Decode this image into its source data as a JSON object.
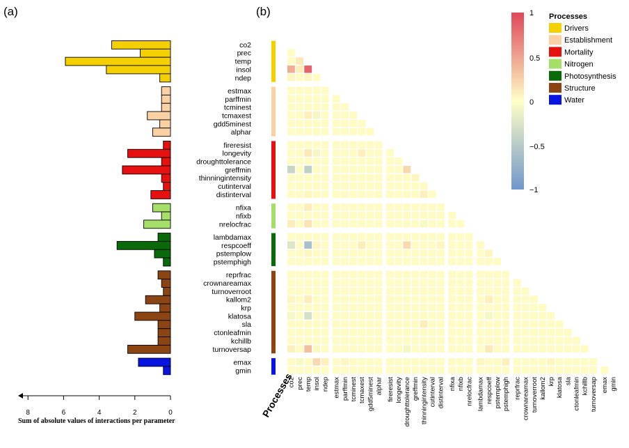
{
  "panel_a": {
    "label": "(a)",
    "axis_title": "Sum of absolute values of interactions per parameter",
    "ticks": [
      "8",
      "6",
      "4",
      "2",
      "0"
    ]
  },
  "panel_b": {
    "label": "(b)",
    "processes_label": "Processes",
    "colorbar_ticks": [
      "1",
      "0.5",
      "0",
      "−0.5",
      "−1"
    ]
  },
  "legend": {
    "title": "Processes",
    "entries": [
      {
        "name": "Drivers",
        "color": "#F5D000"
      },
      {
        "name": "Establishment",
        "color": "#FAD1A4"
      },
      {
        "name": "Mortality",
        "color": "#E61010"
      },
      {
        "name": "Nitrogen",
        "color": "#A6DE6A"
      },
      {
        "name": "Photosynthesis",
        "color": "#0A6A0A"
      },
      {
        "name": "Structure",
        "color": "#8B4513"
      },
      {
        "name": "Water",
        "color": "#0A14E0"
      }
    ]
  },
  "colors": {
    "positive_max": "#E0475A",
    "neutral": "#FFFFC6",
    "negative_max": "#7096CC"
  },
  "chart_data": [
    {
      "type": "bar",
      "orientation": "horizontal",
      "xlabel": "Sum of absolute values of interactions per parameter",
      "xlim": [
        0,
        8
      ],
      "x_reversed": true,
      "groups": [
        {
          "process": "Drivers",
          "params": [
            "co2",
            "prec",
            "temp",
            "insol",
            "ndep"
          ],
          "values": [
            3.3,
            1.7,
            5.9,
            3.6,
            0.6
          ]
        },
        {
          "process": "Establishment",
          "params": [
            "estmax",
            "parffmin",
            "tcminest",
            "tcmaxest",
            "gdd5minest",
            "alphar"
          ],
          "values": [
            0.5,
            0.5,
            0.5,
            1.3,
            0.6,
            1.0
          ]
        },
        {
          "process": "Mortality",
          "params": [
            "fireresist",
            "longevity",
            "droughttolerance",
            "greffmin",
            "thinningintensity",
            "cutinterval",
            "distinterval"
          ],
          "values": [
            0.4,
            2.4,
            0.5,
            2.7,
            0.5,
            0.4,
            1.1
          ]
        },
        {
          "process": "Nitrogen",
          "params": [
            "nfixa",
            "nfixb",
            "nrelocfrac"
          ],
          "values": [
            1.0,
            0.5,
            1.5
          ]
        },
        {
          "process": "Photosynthesis",
          "params": [
            "lambdamax",
            "respcoeff",
            "pstemplow",
            "pstemphigh"
          ],
          "values": [
            0.7,
            3.0,
            0.9,
            0.4
          ]
        },
        {
          "process": "Structure",
          "params": [
            "reprfrac",
            "crownareamax",
            "turnoverroot",
            "kallom2",
            "krp",
            "klatosa",
            "sla",
            "ctonleafmin",
            "kchillb",
            "turnoversap"
          ],
          "values": [
            0.7,
            0.5,
            0.4,
            1.4,
            0.6,
            2.0,
            0.7,
            0.7,
            0.7,
            2.4
          ]
        },
        {
          "process": "Water",
          "params": [
            "emax",
            "gmin"
          ],
          "values": [
            1.8,
            0.4
          ]
        }
      ]
    },
    {
      "type": "heatmap",
      "layout": "lower-triangle",
      "parameters": [
        "co2",
        "prec",
        "temp",
        "insol",
        "ndep",
        "estmax",
        "parffmin",
        "tcminest",
        "tcmaxest",
        "gdd5minest",
        "alphar",
        "fireresist",
        "longevity",
        "droughttolerance",
        "greffmin",
        "thinningintensity",
        "cutinterval",
        "distinterval",
        "nfixa",
        "nfixb",
        "nrelocfrac",
        "lambdamax",
        "respcoeff",
        "pstemplow",
        "pstemphigh",
        "reprfrac",
        "crownareamax",
        "turnoverroot",
        "kallom2",
        "krp",
        "klatosa",
        "sla",
        "ctonleafmin",
        "kchillb",
        "turnoversap",
        "emax",
        "gmin"
      ],
      "group_sizes": [
        5,
        6,
        7,
        3,
        4,
        10,
        2
      ],
      "value_range": [
        -1,
        1
      ],
      "default_value": 0.02,
      "cells": [
        [
          "temp",
          "prec",
          0.12
        ],
        [
          "insol",
          "co2",
          0.45
        ],
        [
          "insol",
          "prec",
          0.1
        ],
        [
          "insol",
          "temp",
          0.85
        ],
        [
          "ndep",
          "co2",
          0.05
        ],
        [
          "ndep",
          "temp",
          0.05
        ],
        [
          "tcmaxest",
          "temp",
          0.08
        ],
        [
          "tcmaxest",
          "insol",
          -0.08
        ],
        [
          "longevity",
          "temp",
          0.12
        ],
        [
          "longevity",
          "insol",
          -0.08
        ],
        [
          "longevity",
          "tcmaxest",
          0.08
        ],
        [
          "greffmin",
          "co2",
          -0.4
        ],
        [
          "greffmin",
          "temp",
          -0.45
        ],
        [
          "greffmin",
          "droughttolerance",
          0.22
        ],
        [
          "thinningintensity",
          "greffmin",
          0.05
        ],
        [
          "distinterval",
          "temp",
          0.05
        ],
        [
          "distinterval",
          "thinningintensity",
          0.08
        ],
        [
          "nfixa",
          "temp",
          0.1
        ],
        [
          "nrelocfrac",
          "co2",
          0.1
        ],
        [
          "nrelocfrac",
          "temp",
          0.15
        ],
        [
          "nrelocfrac",
          "thinningintensity",
          -0.05
        ],
        [
          "respcoeff",
          "co2",
          -0.25
        ],
        [
          "respcoeff",
          "temp",
          -0.6
        ],
        [
          "respcoeff",
          "insol",
          0.05
        ],
        [
          "respcoeff",
          "tcmaxest",
          0.1
        ],
        [
          "respcoeff",
          "droughttolerance",
          0.2
        ],
        [
          "respcoeff",
          "distinterval",
          0.05
        ],
        [
          "pstemplow",
          "temp",
          0.05
        ],
        [
          "pstemplow",
          "respcoeff",
          0.05
        ],
        [
          "kallom2",
          "co2",
          0.05
        ],
        [
          "kallom2",
          "temp",
          0.1
        ],
        [
          "kallom2",
          "respcoeff",
          0.08
        ],
        [
          "klatosa",
          "co2",
          -0.08
        ],
        [
          "klatosa",
          "temp",
          -0.3
        ],
        [
          "klatosa",
          "respcoeff",
          -0.08
        ],
        [
          "sla",
          "thinningintensity",
          0.1
        ],
        [
          "turnoversap",
          "co2",
          0.08
        ],
        [
          "turnoversap",
          "temp",
          0.35
        ],
        [
          "turnoversap",
          "insol",
          -0.05
        ],
        [
          "turnoversap",
          "droughttolerance",
          -0.08
        ],
        [
          "turnoversap",
          "respcoeff",
          0.12
        ],
        [
          "emax",
          "prec",
          -0.05
        ],
        [
          "emax",
          "insol",
          0.2
        ],
        [
          "emax",
          "ndep",
          0.08
        ],
        [
          "emax",
          "parffmin",
          0.05
        ],
        [
          "emax",
          "lambdamax",
          0.05
        ],
        [
          "emax",
          "pstemphigh",
          0.08
        ],
        [
          "emax",
          "krp",
          0.05
        ]
      ]
    }
  ]
}
